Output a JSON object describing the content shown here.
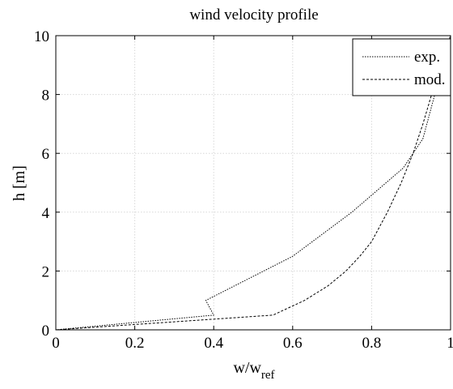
{
  "chart_data": {
    "type": "line",
    "title": "wind velocity profile",
    "xlabel": "w/w",
    "xlabel_subscript": "ref",
    "ylabel": "h [m]",
    "xlim": [
      0,
      1
    ],
    "ylim": [
      0,
      10
    ],
    "xticks": [
      0,
      0.2,
      0.4,
      0.6,
      0.8,
      1
    ],
    "xtick_labels": [
      "0",
      "0.2",
      "0.4",
      "0.6",
      "0.8",
      "1"
    ],
    "yticks": [
      0,
      2,
      4,
      6,
      8,
      10
    ],
    "ytick_labels": [
      "0",
      "2",
      "4",
      "6",
      "8",
      "10"
    ],
    "grid": true,
    "legend_position": "top-right",
    "series": [
      {
        "name": "exp.",
        "color": "#000000",
        "dash": "dotted-fine",
        "points": [
          [
            0,
            0
          ],
          [
            0.4,
            0.5
          ],
          [
            0.38,
            1.0
          ],
          [
            0.6,
            2.5
          ],
          [
            0.75,
            4.0
          ],
          [
            0.88,
            5.5
          ],
          [
            0.93,
            6.5
          ],
          [
            0.96,
            8.0
          ],
          [
            0.985,
            9.5
          ],
          [
            1.0,
            10.0
          ]
        ]
      },
      {
        "name": "mod.",
        "color": "#000000",
        "dash": "dashed",
        "points": [
          [
            0,
            0
          ],
          [
            0.55,
            0.5
          ],
          [
            0.63,
            1.0
          ],
          [
            0.69,
            1.5
          ],
          [
            0.735,
            2.0
          ],
          [
            0.77,
            2.5
          ],
          [
            0.8,
            3.0
          ],
          [
            0.84,
            4.0
          ],
          [
            0.875,
            5.0
          ],
          [
            0.905,
            6.0
          ],
          [
            0.93,
            7.0
          ],
          [
            0.952,
            8.0
          ],
          [
            0.975,
            9.0
          ],
          [
            0.99,
            9.5
          ],
          [
            1.0,
            10.0
          ]
        ]
      }
    ]
  }
}
